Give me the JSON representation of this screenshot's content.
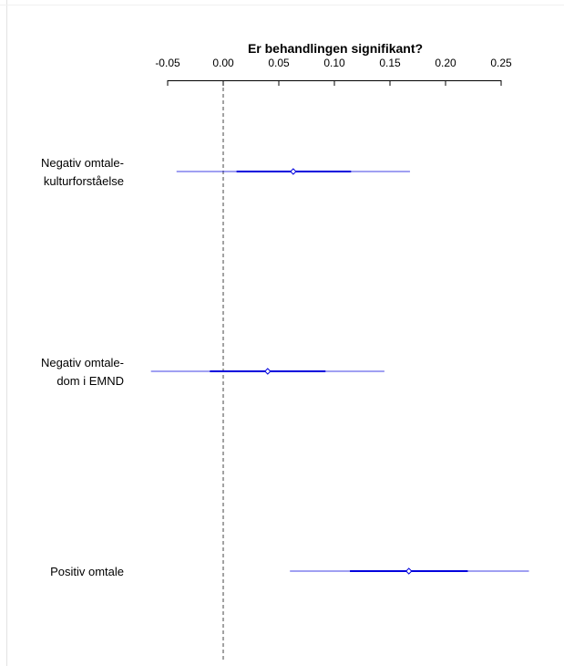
{
  "chart_data": {
    "type": "forest",
    "title": "Er behandlingen signifikant?",
    "xlim": [
      -0.05,
      0.25
    ],
    "x_ticks": [
      -0.05,
      0.0,
      0.05,
      0.1,
      0.15,
      0.2,
      0.25
    ],
    "x_tick_labels": [
      "-0.05",
      "0.00",
      "0.05",
      "0.10",
      "0.15",
      "0.20",
      "0.25"
    ],
    "reference_line": 0,
    "colors": {
      "interval": "#0000dd",
      "reference": "#444444",
      "axis": "#000000"
    },
    "series": [
      {
        "label_lines": [
          "Negativ omtale-",
          "kulturforståelse"
        ],
        "estimate": 0.063,
        "inner": [
          0.012,
          0.115
        ],
        "outer": [
          -0.042,
          0.168
        ]
      },
      {
        "label_lines": [
          "Negativ omtale-",
          "dom i EMND"
        ],
        "estimate": 0.04,
        "inner": [
          -0.012,
          0.092
        ],
        "outer": [
          -0.065,
          0.145
        ]
      },
      {
        "label_lines": [
          "Positiv omtale"
        ],
        "estimate": 0.167,
        "inner": [
          0.114,
          0.22
        ],
        "outer": [
          0.06,
          0.275
        ]
      }
    ]
  }
}
